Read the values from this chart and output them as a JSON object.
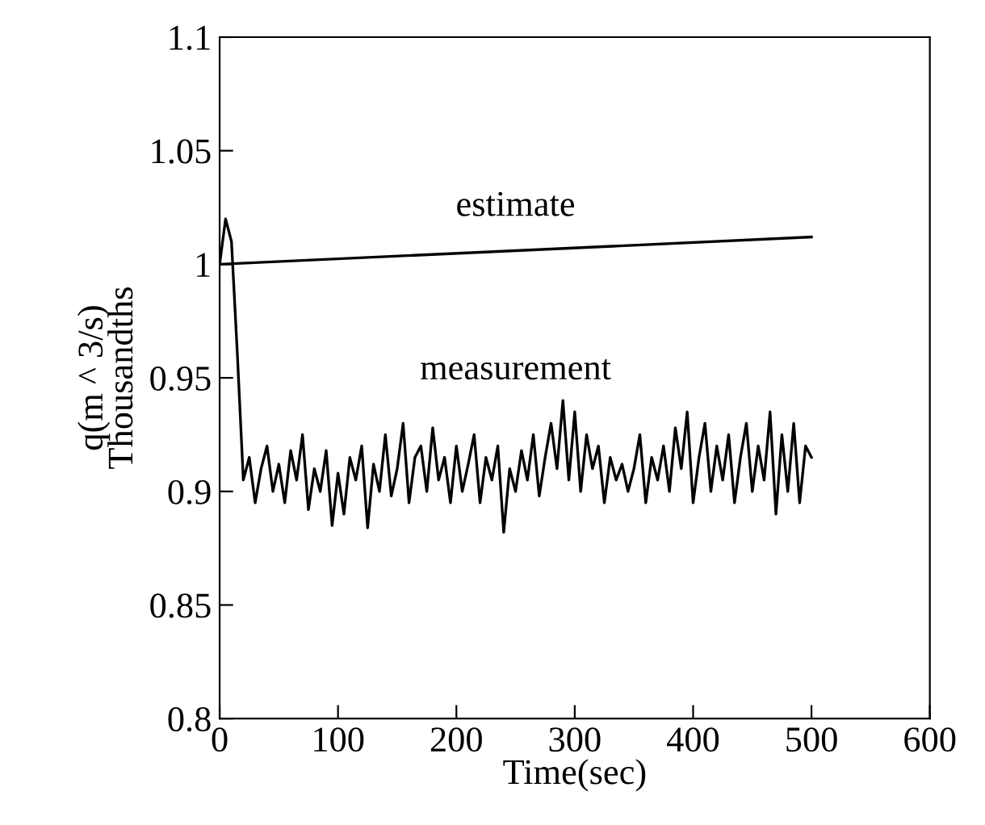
{
  "chart_data": {
    "type": "line",
    "xlabel": "Time(sec)",
    "ylabel": "q(m ^ 3/s)\nThousandths",
    "xlim": [
      0,
      600
    ],
    "xticks": [
      0,
      100,
      200,
      300,
      400,
      500,
      600
    ],
    "ylim": [
      0.8,
      1.1
    ],
    "yticks": [
      {
        "value": 0.8,
        "label": "0.8"
      },
      {
        "value": 0.85,
        "label": "0.85"
      },
      {
        "value": 0.9,
        "label": "0.9"
      },
      {
        "value": 0.95,
        "label": "0.95"
      },
      {
        "value": 1.0,
        "label": "1"
      },
      {
        "value": 1.05,
        "label": "1.05"
      },
      {
        "value": 1.1,
        "label": "1.1"
      }
    ],
    "grid": false,
    "series": [
      {
        "name": "estimate",
        "color": "#000000",
        "x": [
          0,
          500
        ],
        "values": [
          1.0,
          1.012
        ]
      },
      {
        "name": "measurement",
        "color": "#000000",
        "x": [
          0,
          5,
          10,
          15,
          20,
          25,
          30,
          35,
          40,
          45,
          50,
          55,
          60,
          65,
          70,
          75,
          80,
          85,
          90,
          95,
          100,
          105,
          110,
          115,
          120,
          125,
          130,
          135,
          140,
          145,
          150,
          155,
          160,
          165,
          170,
          175,
          180,
          185,
          190,
          195,
          200,
          205,
          210,
          215,
          220,
          225,
          230,
          235,
          240,
          245,
          250,
          255,
          260,
          265,
          270,
          275,
          280,
          285,
          290,
          295,
          300,
          305,
          310,
          315,
          320,
          325,
          330,
          335,
          340,
          345,
          350,
          355,
          360,
          365,
          370,
          375,
          380,
          385,
          390,
          395,
          400,
          405,
          410,
          415,
          420,
          425,
          430,
          435,
          440,
          445,
          450,
          455,
          460,
          465,
          470,
          475,
          480,
          485,
          490,
          495,
          500
        ],
        "values": [
          1.0,
          1.02,
          1.01,
          0.96,
          0.905,
          0.915,
          0.895,
          0.91,
          0.92,
          0.9,
          0.912,
          0.895,
          0.918,
          0.905,
          0.925,
          0.892,
          0.91,
          0.9,
          0.918,
          0.885,
          0.908,
          0.89,
          0.915,
          0.905,
          0.92,
          0.884,
          0.912,
          0.9,
          0.925,
          0.898,
          0.91,
          0.93,
          0.895,
          0.915,
          0.92,
          0.9,
          0.928,
          0.905,
          0.915,
          0.895,
          0.92,
          0.9,
          0.912,
          0.925,
          0.895,
          0.915,
          0.905,
          0.92,
          0.882,
          0.91,
          0.9,
          0.918,
          0.905,
          0.925,
          0.898,
          0.915,
          0.93,
          0.91,
          0.94,
          0.905,
          0.935,
          0.9,
          0.925,
          0.91,
          0.92,
          0.895,
          0.915,
          0.905,
          0.912,
          0.9,
          0.91,
          0.925,
          0.895,
          0.915,
          0.905,
          0.92,
          0.9,
          0.928,
          0.91,
          0.935,
          0.895,
          0.915,
          0.93,
          0.9,
          0.92,
          0.905,
          0.925,
          0.895,
          0.915,
          0.93,
          0.9,
          0.92,
          0.905,
          0.935,
          0.89,
          0.925,
          0.9,
          0.93,
          0.895,
          0.92,
          0.915
        ]
      }
    ]
  }
}
